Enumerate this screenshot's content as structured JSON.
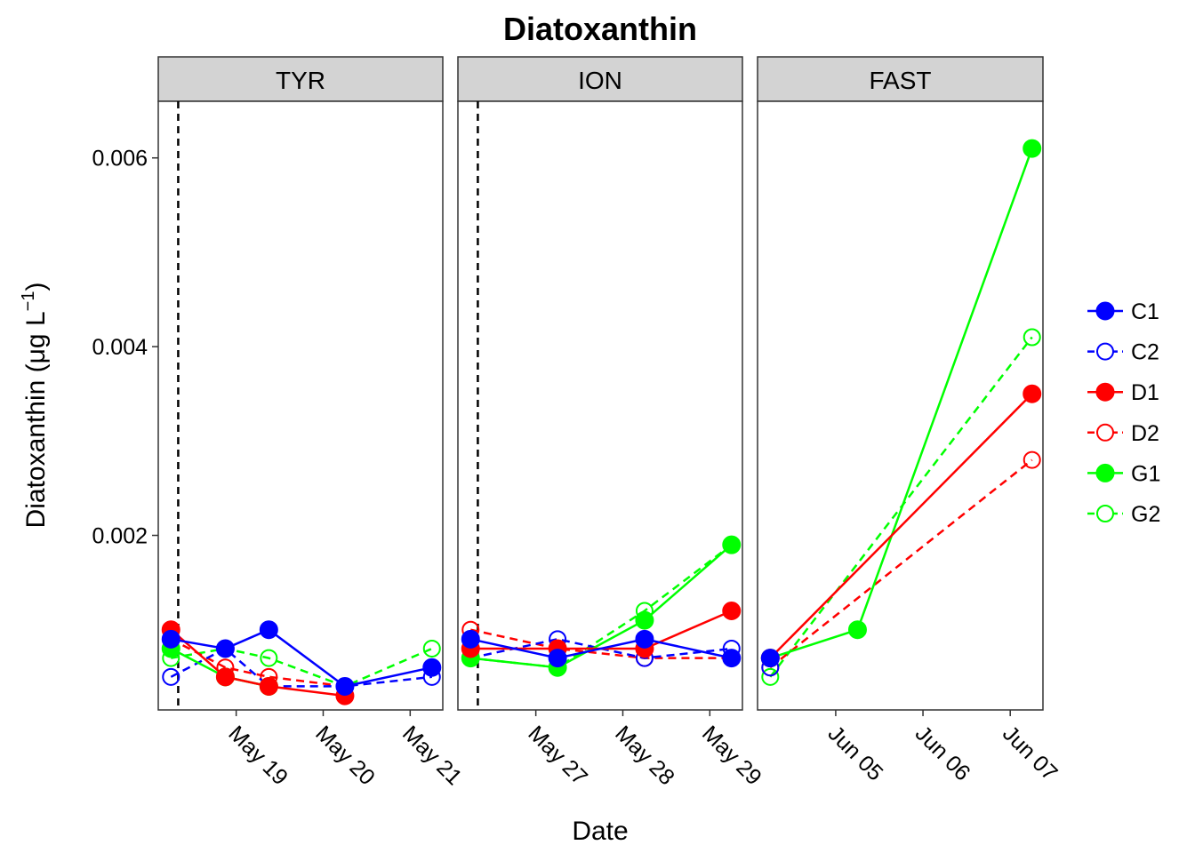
{
  "chart_data": {
    "type": "line",
    "title": "Diatoxanthin",
    "xlabel": "Date",
    "ylabel_main": "Diatoxanthin (",
    "ylabel_unit": "μg L",
    "ylabel_sup": "−1",
    "ylabel_close": ")",
    "ylim": [
      0.00015,
      0.0066
    ],
    "yticks": [
      0.002,
      0.004,
      0.006
    ],
    "ytick_labels": [
      "0.002",
      "0.004",
      "0.006"
    ],
    "legend_position": "right",
    "grid": false,
    "series_styles": [
      {
        "name": "C1",
        "color": "#0000ff",
        "filled": true,
        "dashed": false
      },
      {
        "name": "C2",
        "color": "#0000ff",
        "filled": false,
        "dashed": true
      },
      {
        "name": "D1",
        "color": "#ff0000",
        "filled": true,
        "dashed": false
      },
      {
        "name": "D2",
        "color": "#ff0000",
        "filled": false,
        "dashed": true
      },
      {
        "name": "G1",
        "color": "#00ff00",
        "filled": true,
        "dashed": false
      },
      {
        "name": "G2",
        "color": "#00ff00",
        "filled": false,
        "dashed": true
      }
    ],
    "panels": [
      {
        "label": "TYR",
        "xlim": [
          "2018-05-18 02:30",
          "2018-05-21 09:00"
        ],
        "vline": "2018-05-18 08:00",
        "ticks": [
          {
            "date": "2018-05-19",
            "label": "May 19"
          },
          {
            "date": "2018-05-20",
            "label": "May 20"
          },
          {
            "date": "2018-05-21",
            "label": "May 21"
          }
        ],
        "series": [
          {
            "name": "C1",
            "points": [
              [
                "2018-05-18 06:00",
                0.0009
              ],
              [
                "2018-05-18 21:00",
                0.0008
              ],
              [
                "2018-05-19 09:00",
                0.001
              ],
              [
                "2018-05-20 06:00",
                0.0004
              ],
              [
                "2018-05-21 06:00",
                0.0006
              ]
            ]
          },
          {
            "name": "C2",
            "points": [
              [
                "2018-05-18 06:00",
                0.0005
              ],
              [
                "2018-05-18 21:00",
                0.0008
              ],
              [
                "2018-05-19 09:00",
                0.0004
              ],
              [
                "2018-05-20 06:00",
                0.0004
              ],
              [
                "2018-05-21 06:00",
                0.0005
              ]
            ]
          },
          {
            "name": "D1",
            "points": [
              [
                "2018-05-18 06:00",
                0.001
              ],
              [
                "2018-05-18 21:00",
                0.0005
              ],
              [
                "2018-05-19 09:00",
                0.0004
              ],
              [
                "2018-05-20 06:00",
                0.0003
              ]
            ]
          },
          {
            "name": "D2",
            "points": [
              [
                "2018-05-18 06:00",
                0.0009
              ],
              [
                "2018-05-18 21:00",
                0.0006
              ],
              [
                "2018-05-19 09:00",
                0.0005
              ],
              [
                "2018-05-20 06:00",
                0.0004
              ]
            ]
          },
          {
            "name": "G1",
            "points": [
              [
                "2018-05-18 06:00",
                0.0008
              ],
              [
                "2018-05-18 21:00",
                0.0005
              ],
              [
                "2018-05-19 09:00",
                0.0004
              ]
            ]
          },
          {
            "name": "G2",
            "points": [
              [
                "2018-05-18 06:00",
                0.0007
              ],
              [
                "2018-05-18 21:00",
                0.0008
              ],
              [
                "2018-05-19 09:00",
                0.0007
              ],
              [
                "2018-05-20 06:00",
                0.0004
              ],
              [
                "2018-05-21 06:00",
                0.0008
              ]
            ]
          }
        ]
      },
      {
        "label": "ION",
        "xlim": [
          "2018-05-26 02:30",
          "2018-05-29 09:00"
        ],
        "vline": "2018-05-26 08:00",
        "ticks": [
          {
            "date": "2018-05-27",
            "label": "May 27"
          },
          {
            "date": "2018-05-28",
            "label": "May 28"
          },
          {
            "date": "2018-05-29",
            "label": "May 29"
          }
        ],
        "series": [
          {
            "name": "C1",
            "points": [
              [
                "2018-05-26 06:00",
                0.0009
              ],
              [
                "2018-05-27 06:00",
                0.0007
              ],
              [
                "2018-05-28 06:00",
                0.0009
              ],
              [
                "2018-05-29 06:00",
                0.0007
              ]
            ]
          },
          {
            "name": "C2",
            "points": [
              [
                "2018-05-26 06:00",
                0.0007
              ],
              [
                "2018-05-27 06:00",
                0.0009
              ],
              [
                "2018-05-28 06:00",
                0.0007
              ],
              [
                "2018-05-29 06:00",
                0.0008
              ]
            ]
          },
          {
            "name": "D1",
            "points": [
              [
                "2018-05-26 06:00",
                0.0008
              ],
              [
                "2018-05-27 06:00",
                0.0008
              ],
              [
                "2018-05-28 06:00",
                0.0008
              ],
              [
                "2018-05-29 06:00",
                0.0012
              ]
            ]
          },
          {
            "name": "D2",
            "points": [
              [
                "2018-05-26 06:00",
                0.001
              ],
              [
                "2018-05-27 06:00",
                0.0008
              ],
              [
                "2018-05-28 06:00",
                0.0007
              ],
              [
                "2018-05-29 06:00",
                0.0007
              ]
            ]
          },
          {
            "name": "G1",
            "points": [
              [
                "2018-05-26 06:00",
                0.0007
              ],
              [
                "2018-05-27 06:00",
                0.0006
              ],
              [
                "2018-05-28 06:00",
                0.0011
              ],
              [
                "2018-05-29 06:00",
                0.0019
              ]
            ]
          },
          {
            "name": "G2",
            "points": [
              [
                "2018-05-26 06:00",
                0.0007
              ],
              [
                "2018-05-27 06:00",
                0.0006
              ],
              [
                "2018-05-28 06:00",
                0.0012
              ],
              [
                "2018-05-29 06:00",
                0.0019
              ]
            ]
          }
        ]
      },
      {
        "label": "FAST",
        "xlim": [
          "2018-06-04 02:30",
          "2018-06-07 09:00"
        ],
        "vline": null,
        "ticks": [
          {
            "date": "2018-06-05",
            "label": "Jun 05"
          },
          {
            "date": "2018-06-06",
            "label": "Jun 06"
          },
          {
            "date": "2018-06-07",
            "label": "Jun 07"
          }
        ],
        "series": [
          {
            "name": "C1",
            "points": [
              [
                "2018-06-04 06:00",
                0.0007
              ]
            ]
          },
          {
            "name": "C2",
            "points": [
              [
                "2018-06-04 06:00",
                0.0006
              ]
            ]
          },
          {
            "name": "D1",
            "points": [
              [
                "2018-06-04 06:00",
                0.0007
              ],
              [
                "2018-06-07 06:00",
                0.0035
              ]
            ]
          },
          {
            "name": "D2",
            "points": [
              [
                "2018-06-04 06:00",
                0.0006
              ],
              [
                "2018-06-07 06:00",
                0.0028
              ]
            ]
          },
          {
            "name": "G1",
            "points": [
              [
                "2018-06-04 06:00",
                0.0007
              ],
              [
                "2018-06-05 06:00",
                0.001
              ],
              [
                "2018-06-07 06:00",
                0.0061
              ]
            ]
          },
          {
            "name": "G2",
            "points": [
              [
                "2018-06-04 06:00",
                0.0005
              ],
              [
                "2018-06-07 06:00",
                0.0041
              ]
            ]
          }
        ]
      }
    ]
  }
}
